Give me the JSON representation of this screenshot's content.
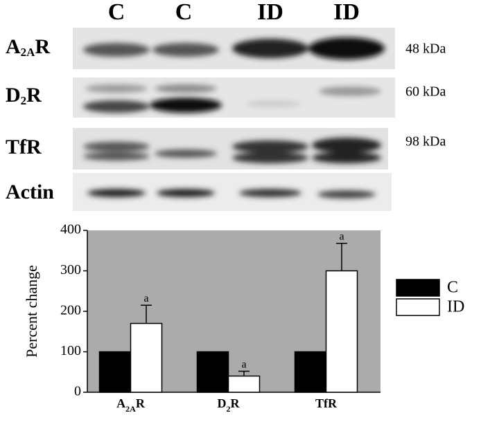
{
  "blot": {
    "lane_labels": [
      "C",
      "C",
      "ID",
      "ID"
    ],
    "row_labels": [
      [
        "A",
        "2A",
        "R"
      ],
      [
        "D",
        "2",
        "R"
      ],
      [
        "TfR"
      ],
      [
        "Actin"
      ]
    ],
    "size_labels": [
      "48 kDa",
      "60 kDa",
      "98 kDa"
    ]
  },
  "chart_data": {
    "type": "bar",
    "y_label": "Percent change",
    "categories": [
      [
        "A",
        "2A",
        "R"
      ],
      [
        "D",
        "2",
        "R"
      ],
      [
        "TfR"
      ]
    ],
    "series": [
      {
        "name": "C",
        "color": "#000000",
        "values": [
          100,
          100,
          100
        ]
      },
      {
        "name": "ID",
        "color": "#ffffff",
        "values": [
          170,
          40,
          300
        ],
        "errors": [
          45,
          12,
          68
        ],
        "annotations": [
          "a",
          "a",
          "a"
        ]
      }
    ],
    "ylim": [
      0,
      400
    ],
    "yticks": [
      0,
      100,
      200,
      300,
      400
    ],
    "background": "#ababab",
    "legend": "right"
  }
}
